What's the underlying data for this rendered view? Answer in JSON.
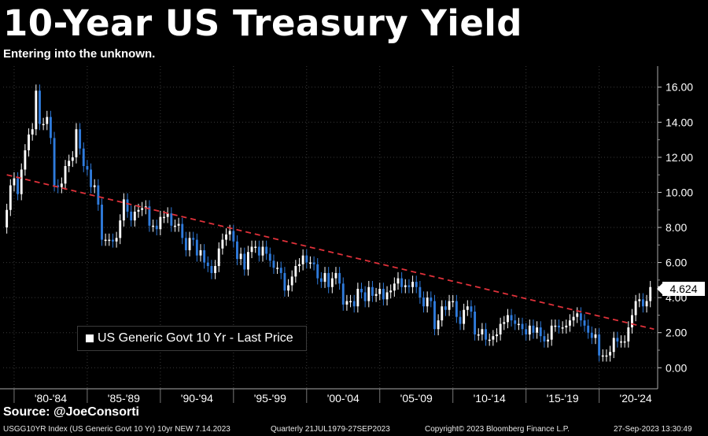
{
  "header": {
    "title": "10-Year US Treasury Yield",
    "subtitle": "Entering into the unknown."
  },
  "legend": {
    "label": "US Generic Govt 10 Yr - Last Price"
  },
  "last_price_label": "4.624",
  "source": "Source: @JoeConsorti",
  "footer": {
    "index": "USGG10YR Index (US Generic Govt 10 Yr) 10yr NEW 7.14.2023",
    "period": "Quarterly 21JUL1979-27SEP2023",
    "copyright": "Copyright© 2023 Bloomberg Finance L.P.",
    "timestamp": "27-Sep-2023 13:30:49"
  },
  "colors": {
    "background": "#000000",
    "up_candle": "#ffffff",
    "down_candle": "#2f7bdc",
    "trendline": "#e0313a",
    "grid": "#3a3a3a"
  },
  "chart_data": {
    "type": "candlestick",
    "frequency": "quarterly",
    "ylim": [
      -1.2,
      17.2
    ],
    "y_ticks": [
      "0.00",
      "2.00",
      "4.00",
      "6.00",
      "8.00",
      "10.00",
      "12.00",
      "14.00",
      "16.00"
    ],
    "x_tick_labels": [
      "'80-'84",
      "'85-'89",
      "'90-'94",
      "'95-'99",
      "'00-'04",
      "'05-'09",
      "'10-'14",
      "'15-'19",
      "'20-'24"
    ],
    "series": [
      {
        "name": "US Generic Govt 10 Yr - Last Price",
        "x": [
          1979.5,
          1979.75,
          1980,
          1980.25,
          1980.5,
          1980.75,
          1981,
          1981.25,
          1981.5,
          1981.75,
          1982,
          1982.25,
          1982.5,
          1982.75,
          1983,
          1983.25,
          1983.5,
          1983.75,
          1984,
          1984.25,
          1984.5,
          1984.75,
          1985,
          1985.25,
          1985.5,
          1985.75,
          1986,
          1986.25,
          1986.5,
          1986.75,
          1987,
          1987.25,
          1987.5,
          1987.75,
          1988,
          1988.25,
          1988.5,
          1988.75,
          1989,
          1989.25,
          1989.5,
          1989.75,
          1990,
          1990.25,
          1990.5,
          1990.75,
          1991,
          1991.25,
          1991.5,
          1991.75,
          1992,
          1992.25,
          1992.5,
          1992.75,
          1993,
          1993.25,
          1993.5,
          1993.75,
          1994,
          1994.25,
          1994.5,
          1994.75,
          1995,
          1995.25,
          1995.5,
          1995.75,
          1996,
          1996.25,
          1996.5,
          1996.75,
          1997,
          1997.25,
          1997.5,
          1997.75,
          1998,
          1998.25,
          1998.5,
          1998.75,
          1999,
          1999.25,
          1999.5,
          1999.75,
          2000,
          2000.25,
          2000.5,
          2000.75,
          2001,
          2001.25,
          2001.5,
          2001.75,
          2002,
          2002.25,
          2002.5,
          2002.75,
          2003,
          2003.25,
          2003.5,
          2003.75,
          2004,
          2004.25,
          2004.5,
          2004.75,
          2005,
          2005.25,
          2005.5,
          2005.75,
          2006,
          2006.25,
          2006.5,
          2006.75,
          2007,
          2007.25,
          2007.5,
          2007.75,
          2008,
          2008.25,
          2008.5,
          2008.75,
          2009,
          2009.25,
          2009.5,
          2009.75,
          2010,
          2010.25,
          2010.5,
          2010.75,
          2011,
          2011.25,
          2011.5,
          2011.75,
          2012,
          2012.25,
          2012.5,
          2012.75,
          2013,
          2013.25,
          2013.5,
          2013.75,
          2014,
          2014.25,
          2014.5,
          2014.75,
          2015,
          2015.25,
          2015.5,
          2015.75,
          2016,
          2016.25,
          2016.5,
          2016.75,
          2017,
          2017.25,
          2017.5,
          2017.75,
          2018,
          2018.25,
          2018.5,
          2018.75,
          2019,
          2019.25,
          2019.5,
          2019.75,
          2020,
          2020.25,
          2020.5,
          2020.75,
          2021,
          2021.25,
          2021.5,
          2021.75,
          2022,
          2022.25,
          2022.5,
          2022.75,
          2023,
          2023.25,
          2023.5
        ],
        "close": [
          9.0,
          10.4,
          10.8,
          9.9,
          11.3,
          12.4,
          13.3,
          13.6,
          15.8,
          13.9,
          13.9,
          14.3,
          13.1,
          10.4,
          10.3,
          10.5,
          11.5,
          11.8,
          12.0,
          13.6,
          12.5,
          11.5,
          11.3,
          10.3,
          10.4,
          9.3,
          7.3,
          7.3,
          7.3,
          7.2,
          7.4,
          8.4,
          9.6,
          8.9,
          8.4,
          8.9,
          9.0,
          9.1,
          9.2,
          8.1,
          8.1,
          7.9,
          8.6,
          8.6,
          8.8,
          8.1,
          8.1,
          8.2,
          7.4,
          6.7,
          7.4,
          7.3,
          6.4,
          6.7,
          6.0,
          5.8,
          5.4,
          5.8,
          6.8,
          7.3,
          7.6,
          7.8,
          7.2,
          6.2,
          6.5,
          5.6,
          6.6,
          6.9,
          6.9,
          6.4,
          6.9,
          6.5,
          6.1,
          5.7,
          5.7,
          5.4,
          4.4,
          4.7,
          5.2,
          5.8,
          5.9,
          6.4,
          6.0,
          6.0,
          5.9,
          5.1,
          4.9,
          5.4,
          4.6,
          5.1,
          5.4,
          4.8,
          3.6,
          3.8,
          3.8,
          3.5,
          4.5,
          4.3,
          3.8,
          4.6,
          4.1,
          4.2,
          4.5,
          3.9,
          4.3,
          4.4,
          4.8,
          5.1,
          4.6,
          4.7,
          4.6,
          4.9,
          4.6,
          4.0,
          3.5,
          4.0,
          3.8,
          2.2,
          2.7,
          3.5,
          3.3,
          3.8,
          3.8,
          2.9,
          2.5,
          3.3,
          3.5,
          3.2,
          1.9,
          1.9,
          2.2,
          1.6,
          1.6,
          1.8,
          1.9,
          2.5,
          2.6,
          3.0,
          2.7,
          2.5,
          2.5,
          2.2,
          1.9,
          2.4,
          2.0,
          2.3,
          1.8,
          1.5,
          1.6,
          2.4,
          2.4,
          2.3,
          2.3,
          2.4,
          2.7,
          2.9,
          3.1,
          2.7,
          2.4,
          2.0,
          1.7,
          1.9,
          0.7,
          0.7,
          0.7,
          0.9,
          1.7,
          1.5,
          1.5,
          1.5,
          2.3,
          3.0,
          3.8,
          3.9,
          3.5,
          3.8,
          4.6
        ]
      }
    ],
    "trendline": {
      "style": "dashed",
      "x": [
        1979.5,
        2023.75
      ],
      "y": [
        11.0,
        2.2
      ]
    },
    "last_value": 4.624
  }
}
